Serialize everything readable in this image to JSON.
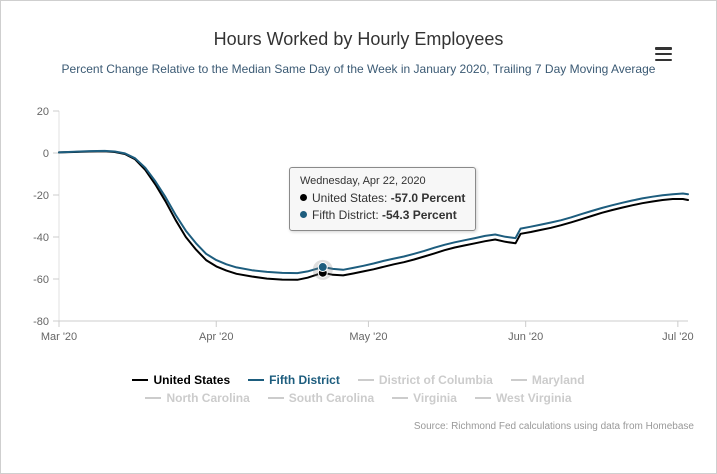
{
  "header": {
    "menu_icon": "hamburger-menu-icon"
  },
  "tooltip": {
    "header": "Wednesday, Apr 22, 2020",
    "rows": [
      {
        "series": "United States:",
        "value": "-57.0 Percent",
        "color": "#000000"
      },
      {
        "series": "Fifth District:",
        "value": "-54.3 Percent",
        "color": "#1d5d7e"
      }
    ]
  },
  "legend": {
    "rows": [
      [
        {
          "label": "United States",
          "color": "#000000",
          "label_color": "#000000",
          "enabled": true
        },
        {
          "label": "Fifth District",
          "color": "#1d5d7e",
          "label_color": "#1d5d7e",
          "enabled": true
        },
        {
          "label": "District of Columbia",
          "color": "#cccccc",
          "enabled": false
        },
        {
          "label": "Maryland",
          "color": "#cccccc",
          "enabled": false
        }
      ],
      [
        {
          "label": "North Carolina",
          "color": "#cccccc",
          "enabled": false
        },
        {
          "label": "South Carolina",
          "color": "#cccccc",
          "enabled": false
        },
        {
          "label": "Virginia",
          "color": "#cccccc",
          "enabled": false
        },
        {
          "label": "West Virginia",
          "color": "#cccccc",
          "enabled": false
        }
      ]
    ]
  },
  "source": "Source: Richmond Fed calculations using data from Homebase",
  "colors": {
    "united_states_line": "#000000",
    "fifth_district_line": "#1d5d7e",
    "disabled_legend": "#cccccc",
    "axis_label": "#666666"
  },
  "chart_data": {
    "type": "line",
    "title": "Hours Worked by Hourly Employees",
    "subtitle": "Percent Change Relative to the Median Same Day of the Week in January 2020, Trailing 7 Day Moving Average",
    "xlabel": "",
    "ylabel": "",
    "x_unit": "days since Mar 1, 2020",
    "xlim": [
      0,
      124
    ],
    "ylim": [
      -80,
      20
    ],
    "yticks": [
      20,
      0,
      -20,
      -40,
      -60,
      -80
    ],
    "xticks": [
      {
        "pos": 0,
        "label": "Mar '20"
      },
      {
        "pos": 31,
        "label": "Apr '20"
      },
      {
        "pos": 61,
        "label": "May '20"
      },
      {
        "pos": 92,
        "label": "Jun '20"
      },
      {
        "pos": 122,
        "label": "Jul '20"
      }
    ],
    "grid": false,
    "legend_position": "bottom",
    "series": [
      {
        "name": "United States",
        "color": "#000000",
        "enabled": true,
        "points": [
          [
            0,
            0.3
          ],
          [
            3,
            0.5
          ],
          [
            6,
            0.7
          ],
          [
            9,
            0.8
          ],
          [
            11,
            0.5
          ],
          [
            13,
            -0.5
          ],
          [
            15,
            -3
          ],
          [
            17,
            -8
          ],
          [
            19,
            -15
          ],
          [
            21,
            -23
          ],
          [
            23,
            -32
          ],
          [
            25,
            -40
          ],
          [
            27,
            -46
          ],
          [
            29,
            -51
          ],
          [
            31,
            -54
          ],
          [
            33,
            -56
          ],
          [
            35,
            -57.5
          ],
          [
            38,
            -58.8
          ],
          [
            41,
            -59.8
          ],
          [
            44,
            -60.3
          ],
          [
            47,
            -60.4
          ],
          [
            49,
            -59.4
          ],
          [
            52,
            -57.0
          ],
          [
            54,
            -58.0
          ],
          [
            56,
            -58.3
          ],
          [
            58,
            -57.4
          ],
          [
            60,
            -56.4
          ],
          [
            62,
            -55.4
          ],
          [
            64,
            -54.2
          ],
          [
            66,
            -53.0
          ],
          [
            68,
            -52.0
          ],
          [
            70,
            -50.7
          ],
          [
            72,
            -49.3
          ],
          [
            74,
            -47.8
          ],
          [
            76,
            -46.3
          ],
          [
            78,
            -45.0
          ],
          [
            80,
            -44.0
          ],
          [
            82,
            -43.0
          ],
          [
            84,
            -42.0
          ],
          [
            86,
            -41.2
          ],
          [
            88,
            -42.3
          ],
          [
            90,
            -43.0
          ],
          [
            91,
            -38.5
          ],
          [
            93,
            -37.6
          ],
          [
            95,
            -36.6
          ],
          [
            97,
            -35.6
          ],
          [
            99,
            -34.4
          ],
          [
            101,
            -33.0
          ],
          [
            103,
            -31.5
          ],
          [
            105,
            -30.0
          ],
          [
            107,
            -28.5
          ],
          [
            109,
            -27.2
          ],
          [
            111,
            -26.0
          ],
          [
            113,
            -24.9
          ],
          [
            115,
            -23.9
          ],
          [
            117,
            -23.1
          ],
          [
            119,
            -22.4
          ],
          [
            121,
            -21.9
          ],
          [
            123,
            -21.9
          ],
          [
            124,
            -22.4
          ]
        ]
      },
      {
        "name": "Fifth District",
        "color": "#1d5d7e",
        "enabled": true,
        "points": [
          [
            0,
            0.3
          ],
          [
            3,
            0.6
          ],
          [
            6,
            0.9
          ],
          [
            9,
            1.0
          ],
          [
            11,
            0.7
          ],
          [
            13,
            -0.2
          ],
          [
            15,
            -2.5
          ],
          [
            17,
            -7
          ],
          [
            19,
            -13.5
          ],
          [
            21,
            -21
          ],
          [
            23,
            -29.5
          ],
          [
            25,
            -37
          ],
          [
            27,
            -43
          ],
          [
            29,
            -48
          ],
          [
            31,
            -51
          ],
          [
            33,
            -53
          ],
          [
            35,
            -54.5
          ],
          [
            38,
            -55.8
          ],
          [
            41,
            -56.6
          ],
          [
            44,
            -57.1
          ],
          [
            47,
            -57.2
          ],
          [
            49,
            -56.4
          ],
          [
            52,
            -54.3
          ],
          [
            54,
            -55.2
          ],
          [
            56,
            -55.6
          ],
          [
            58,
            -54.7
          ],
          [
            60,
            -53.7
          ],
          [
            62,
            -52.6
          ],
          [
            64,
            -51.4
          ],
          [
            66,
            -50.3
          ],
          [
            68,
            -49.3
          ],
          [
            70,
            -48.0
          ],
          [
            72,
            -46.6
          ],
          [
            74,
            -45.1
          ],
          [
            76,
            -43.7
          ],
          [
            78,
            -42.5
          ],
          [
            80,
            -41.5
          ],
          [
            82,
            -40.5
          ],
          [
            84,
            -39.5
          ],
          [
            86,
            -38.8
          ],
          [
            88,
            -39.9
          ],
          [
            90,
            -40.5
          ],
          [
            91,
            -36.0
          ],
          [
            93,
            -35.1
          ],
          [
            95,
            -34.1
          ],
          [
            97,
            -33.1
          ],
          [
            99,
            -32.0
          ],
          [
            101,
            -30.6
          ],
          [
            103,
            -29.1
          ],
          [
            105,
            -27.6
          ],
          [
            107,
            -26.2
          ],
          [
            109,
            -24.9
          ],
          [
            111,
            -23.7
          ],
          [
            113,
            -22.6
          ],
          [
            115,
            -21.6
          ],
          [
            117,
            -20.8
          ],
          [
            119,
            -20.1
          ],
          [
            121,
            -19.6
          ],
          [
            123,
            -19.3
          ],
          [
            124,
            -19.6
          ]
        ]
      },
      {
        "name": "District of Columbia",
        "color": "#cccccc",
        "enabled": false
      },
      {
        "name": "Maryland",
        "color": "#cccccc",
        "enabled": false
      },
      {
        "name": "North Carolina",
        "color": "#cccccc",
        "enabled": false
      },
      {
        "name": "South Carolina",
        "color": "#cccccc",
        "enabled": false
      },
      {
        "name": "Virginia",
        "color": "#cccccc",
        "enabled": false
      },
      {
        "name": "West Virginia",
        "color": "#cccccc",
        "enabled": false
      }
    ],
    "marker": {
      "day": 52,
      "points": [
        {
          "series": "United States",
          "value": -57.0,
          "color": "#000000"
        },
        {
          "series": "Fifth District",
          "value": -54.3,
          "color": "#1d5d7e"
        }
      ]
    }
  }
}
